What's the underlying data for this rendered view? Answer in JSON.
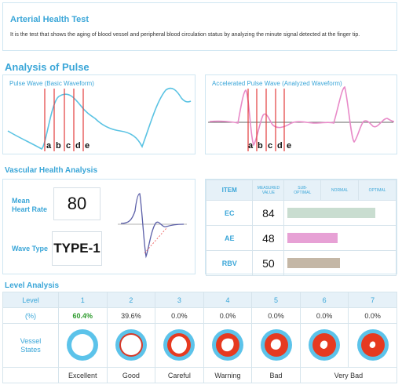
{
  "header": {
    "title": "Arterial Health Test",
    "description": "It is the test that shows the aging of blood vessel and peripheral blood circulation status by analyzing the minute signal detected at the finger tip."
  },
  "pulse": {
    "section_title": "Analysis of Pulse",
    "basic_title": "Pulse Wave (Basic Waveform)",
    "accel_title": "Accelerated Pulse Wave (Analyzed Waveform)",
    "markers": [
      "a",
      "b",
      "c",
      "d",
      "e"
    ]
  },
  "vascular": {
    "section_title": "Vascular Health Analysis",
    "heart_rate_label_1": "Mean",
    "heart_rate_label_2": "Heart Rate",
    "heart_rate_value": "80",
    "wave_type_label": "Wave Type",
    "wave_type_value": "TYPE-1",
    "table_headers": {
      "item": "ITEM",
      "measured_1": "MEASURED",
      "measured_2": "VALUE",
      "sub_1": "SUB-",
      "sub_2": "OPTIMAL",
      "normal": "NORMAL",
      "optimal": "OPTIMAL"
    },
    "rows": [
      {
        "item": "EC",
        "value": "84",
        "fraction": 0.84,
        "color": "#c9ddd0"
      },
      {
        "item": "AE",
        "value": "48",
        "fraction": 0.48,
        "color": "#e7a1d5"
      },
      {
        "item": "RBV",
        "value": "50",
        "fraction": 0.5,
        "color": "#c4b7a6"
      }
    ]
  },
  "level": {
    "section_title": "Level Analysis",
    "row_label_level": "Level",
    "row_label_percent": "(%)",
    "row_label_vessel_1": "Vessel",
    "row_label_vessel_2": "States",
    "levels": [
      "1",
      "2",
      "3",
      "4",
      "5",
      "6",
      "7"
    ],
    "percents": [
      "60.4%",
      "39.6%",
      "0.0%",
      "0.0%",
      "0.0%",
      "0.0%",
      "0.0%"
    ],
    "states": [
      "Excellent",
      "Good",
      "Careful",
      "Warning",
      "Bad",
      "Very Bad"
    ],
    "highlight_color": "#2e9b2e"
  }
}
